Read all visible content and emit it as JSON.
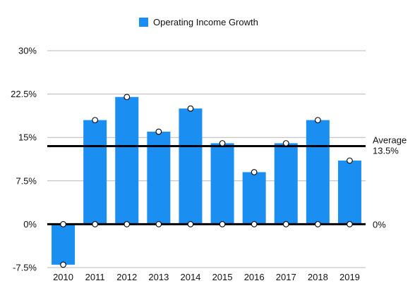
{
  "chart_data": {
    "type": "bar",
    "legend": {
      "label": "Operating Income Growth",
      "placement": "top-center"
    },
    "categories": [
      "2010",
      "2011",
      "2012",
      "2013",
      "2014",
      "2015",
      "2016",
      "2017",
      "2018",
      "2019"
    ],
    "series": [
      {
        "name": "Operating Income Growth",
        "values": [
          -7,
          18,
          22,
          16,
          20,
          14,
          9,
          14,
          18,
          11
        ]
      }
    ],
    "ylim": [
      -7.5,
      30
    ],
    "yticks": [
      30,
      22.5,
      15,
      7.5,
      0,
      -7.5
    ],
    "ytick_labels": [
      "30%",
      "22.5%",
      "15%",
      "7.5%",
      "0%",
      "-7.5%"
    ],
    "reference_lines": [
      {
        "value": 13.5,
        "label_line1": "Average",
        "label_line2": "13.5%"
      },
      {
        "value": 0,
        "label_line1": "0%"
      }
    ],
    "grid": true,
    "colors": {
      "bar": "#1b8ef2",
      "grid": "#b8b8b8",
      "ref_line": "#000000",
      "marker_fill": "#ffffff",
      "marker_stroke": "#000000"
    }
  }
}
